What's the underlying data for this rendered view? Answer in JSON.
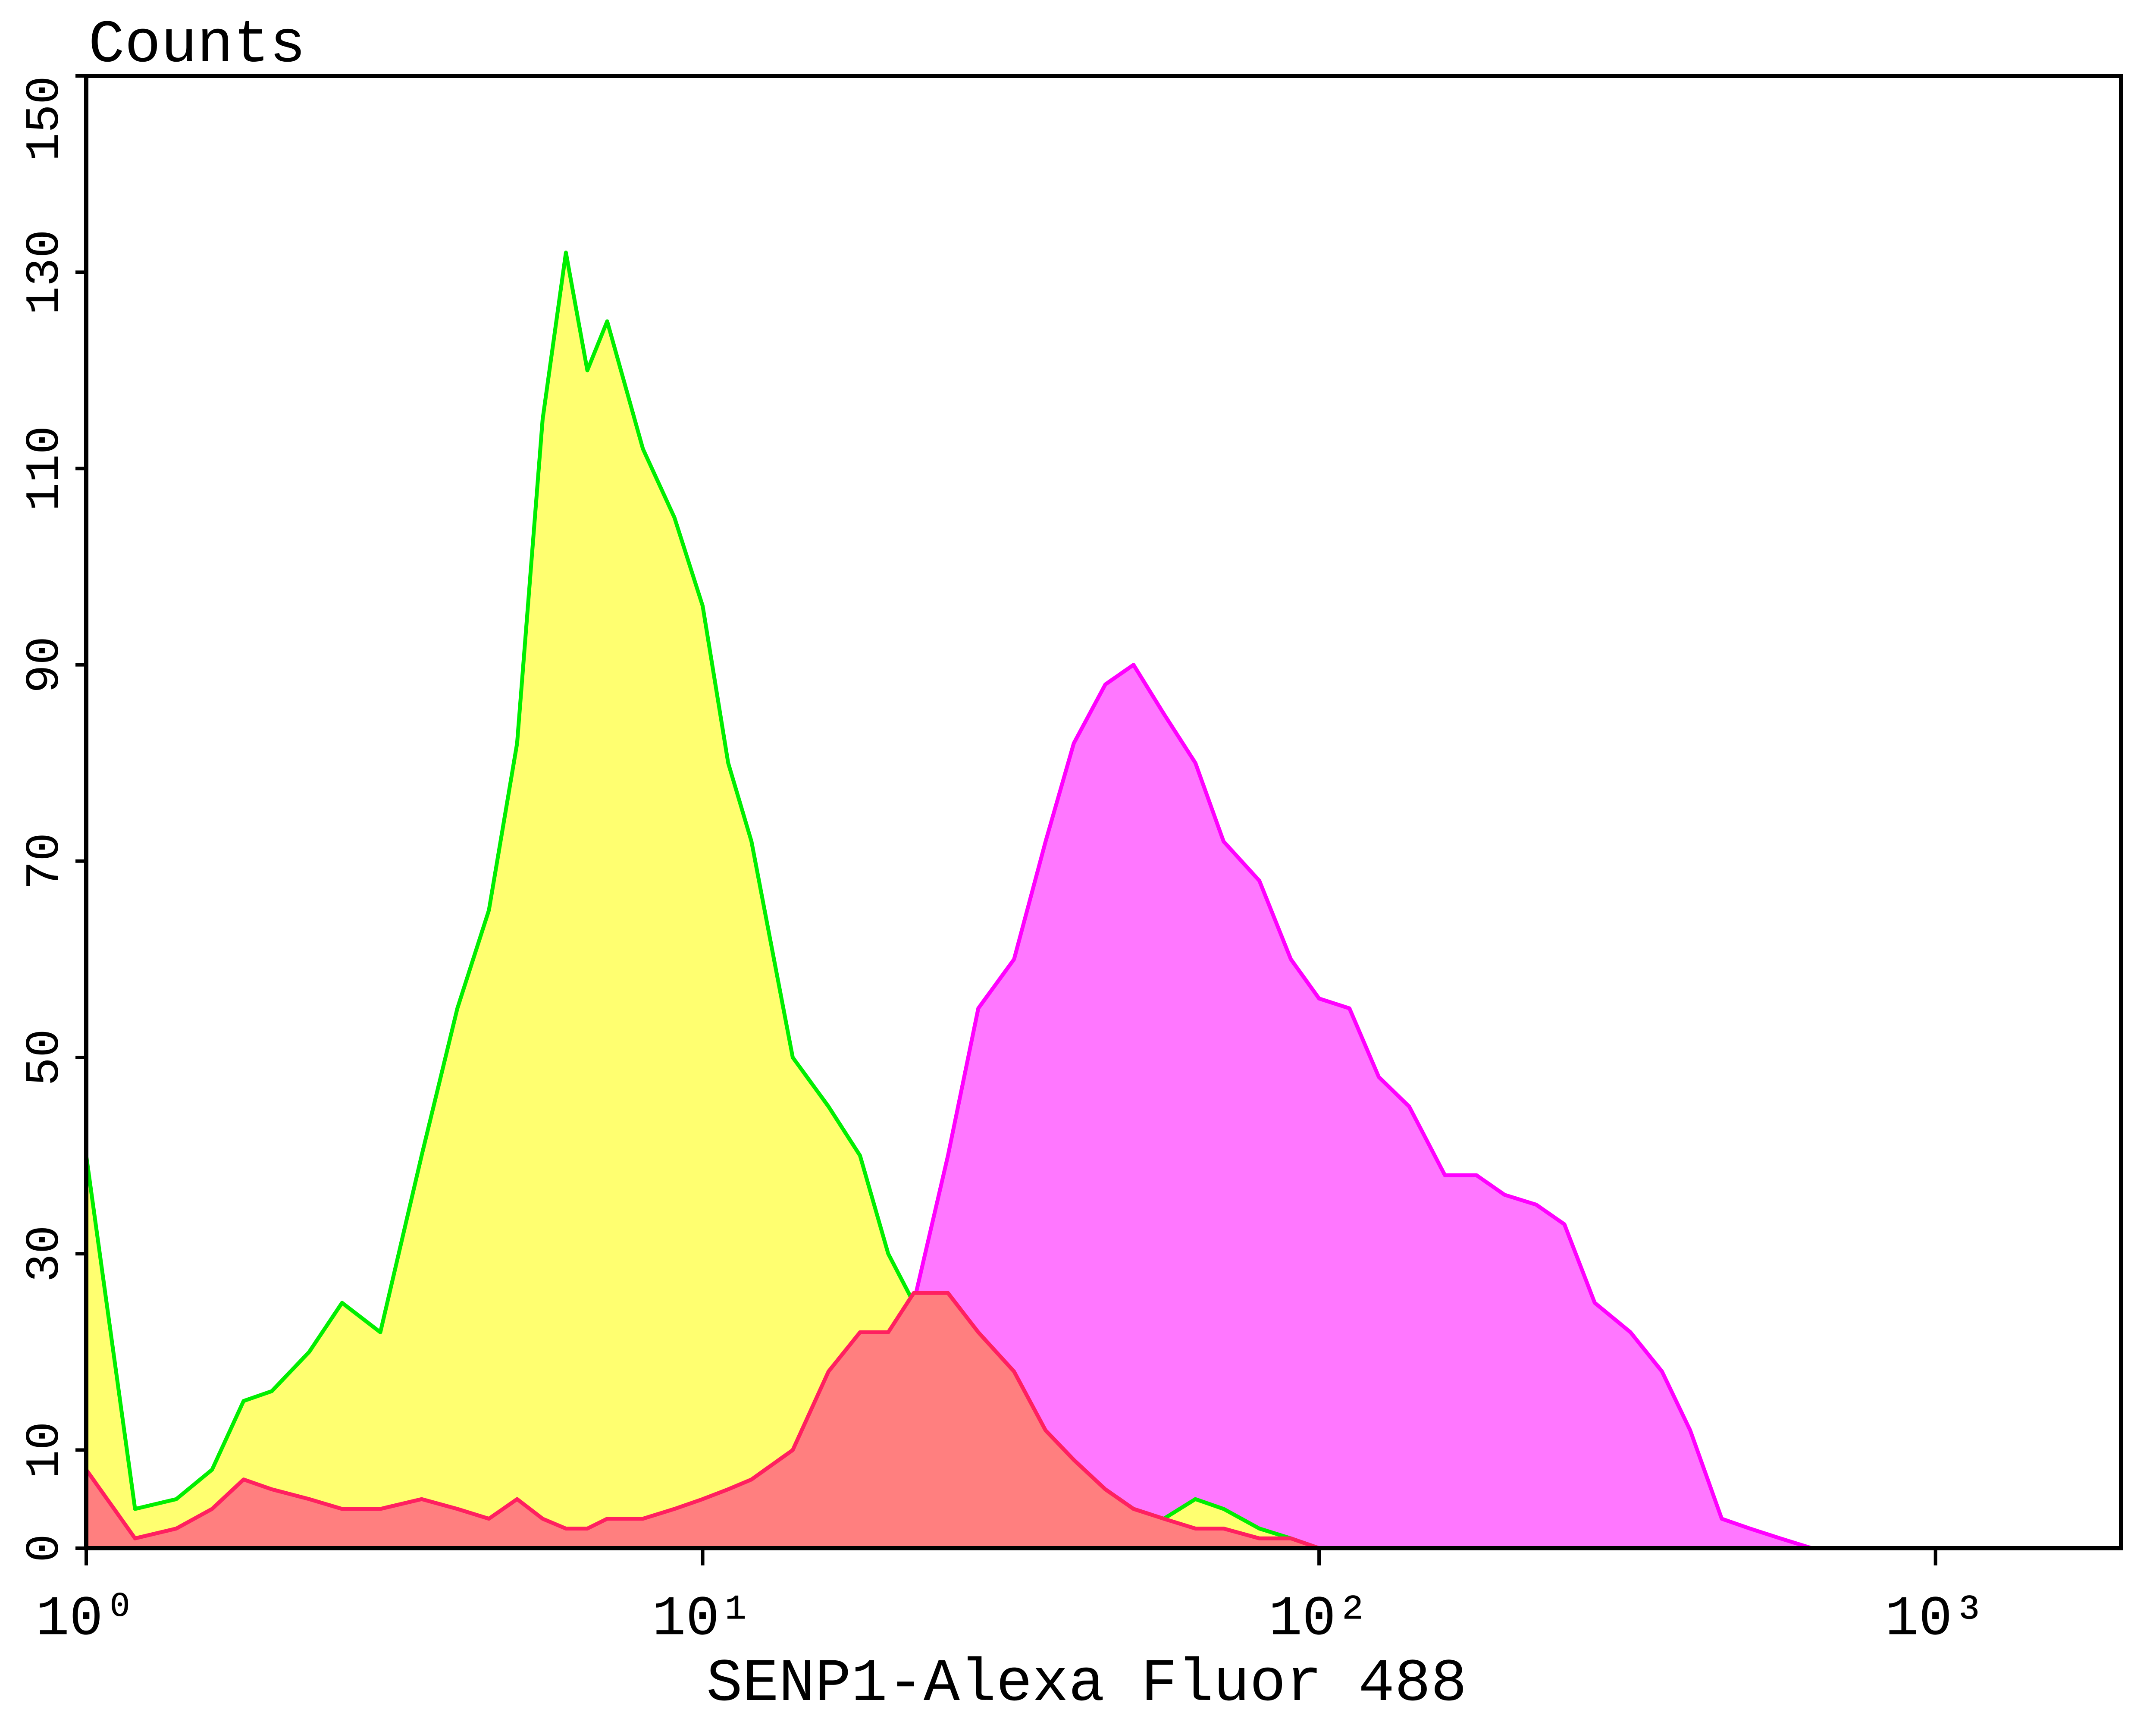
{
  "chart_data": {
    "type": "histogram-overlay",
    "title": "Counts",
    "x_label": "SENP1-Alexa Fluor 488",
    "xscale": "log",
    "xlim": [
      1,
      2000
    ],
    "xticks": [
      {
        "value": 1,
        "label": "10⁰"
      },
      {
        "value": 10,
        "label": "10¹"
      },
      {
        "value": 100,
        "label": "10²"
      },
      {
        "value": 1000,
        "label": "10³"
      }
    ],
    "ylim": [
      0,
      150
    ],
    "yticks": [
      0,
      10,
      30,
      50,
      70,
      90,
      110,
      130,
      150
    ],
    "x": [
      1,
      1.2,
      1.4,
      1.6,
      1.8,
      2,
      2.3,
      2.6,
      3,
      3.5,
      4,
      4.5,
      5,
      5.5,
      6,
      6.5,
      7,
      8,
      9,
      10,
      11,
      12,
      14,
      16,
      18,
      20,
      22,
      25,
      28,
      32,
      36,
      40,
      45,
      50,
      56,
      63,
      70,
      80,
      90,
      100,
      112,
      125,
      140,
      160,
      180,
      200,
      225,
      250,
      280,
      320,
      360,
      400,
      450,
      500,
      560,
      630,
      700,
      800,
      1000
    ],
    "series": [
      {
        "color": "#ff00ff",
        "fill": "#ff77ff",
        "values": [
          0,
          0,
          0,
          0,
          0,
          0,
          0,
          0,
          0,
          0,
          0,
          0,
          0,
          0,
          0,
          0,
          0,
          0,
          0,
          0,
          0,
          0,
          0,
          0,
          0,
          0,
          25,
          40,
          55,
          60,
          72,
          82,
          88,
          90,
          85,
          80,
          72,
          68,
          60,
          56,
          55,
          48,
          45,
          38,
          38,
          36,
          35,
          33,
          25,
          22,
          18,
          12,
          3,
          2,
          1,
          0,
          0,
          0,
          0
        ]
      },
      {
        "color": "#00ee00",
        "fill": "#ffff70",
        "values": [
          40,
          4,
          5,
          8,
          15,
          16,
          20,
          25,
          22,
          40,
          55,
          65,
          82,
          115,
          132,
          120,
          125,
          112,
          105,
          96,
          80,
          72,
          50,
          45,
          40,
          30,
          25,
          20,
          18,
          14,
          10,
          8,
          6,
          4,
          3,
          5,
          4,
          2,
          1,
          0,
          0,
          0,
          0,
          0,
          0,
          0,
          0,
          0,
          0,
          0,
          0,
          0,
          0,
          0,
          0,
          0,
          0,
          0,
          0
        ]
      },
      {
        "color": "#ff2060",
        "fill": "#ff7f7f",
        "values": [
          8,
          1,
          2,
          4,
          7,
          6,
          5,
          4,
          4,
          5,
          4,
          3,
          5,
          3,
          2,
          2,
          3,
          3,
          4,
          5,
          6,
          7,
          10,
          18,
          22,
          22,
          26,
          26,
          22,
          18,
          12,
          9,
          6,
          4,
          3,
          2,
          2,
          1,
          1,
          0,
          0,
          0,
          0,
          0,
          0,
          0,
          0,
          0,
          0,
          0,
          0,
          0,
          0,
          0,
          0,
          0,
          0,
          0,
          0
        ]
      }
    ]
  }
}
